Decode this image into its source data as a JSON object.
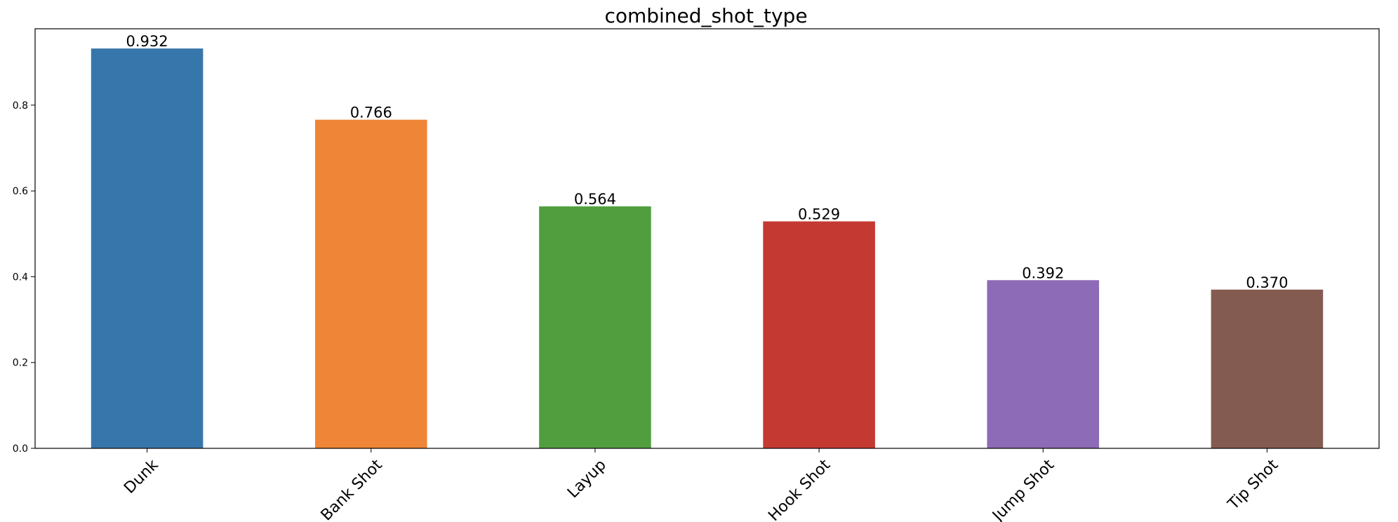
{
  "chart_data": {
    "type": "bar",
    "title": "combined_shot_type",
    "xlabel": "",
    "ylabel": "",
    "categories": [
      "Dunk",
      "Bank Shot",
      "Layup",
      "Hook Shot",
      "Jump Shot",
      "Tip Shot"
    ],
    "values": [
      0.932,
      0.766,
      0.564,
      0.529,
      0.392,
      0.37
    ],
    "value_labels": [
      "0.932",
      "0.766",
      "0.564",
      "0.529",
      "0.392",
      "0.370"
    ],
    "colors": [
      "#3776ab",
      "#ee8537",
      "#519e3e",
      "#c43932",
      "#8d6bb7",
      "#845b50"
    ],
    "ylim": [
      0,
      0.978
    ],
    "yticks": [
      0.0,
      0.2,
      0.4,
      0.6,
      0.8
    ],
    "ytick_labels": [
      "0.0",
      "0.2",
      "0.4",
      "0.6",
      "0.8"
    ],
    "xtick_rotation": 45,
    "grid": false,
    "legend": "none"
  }
}
